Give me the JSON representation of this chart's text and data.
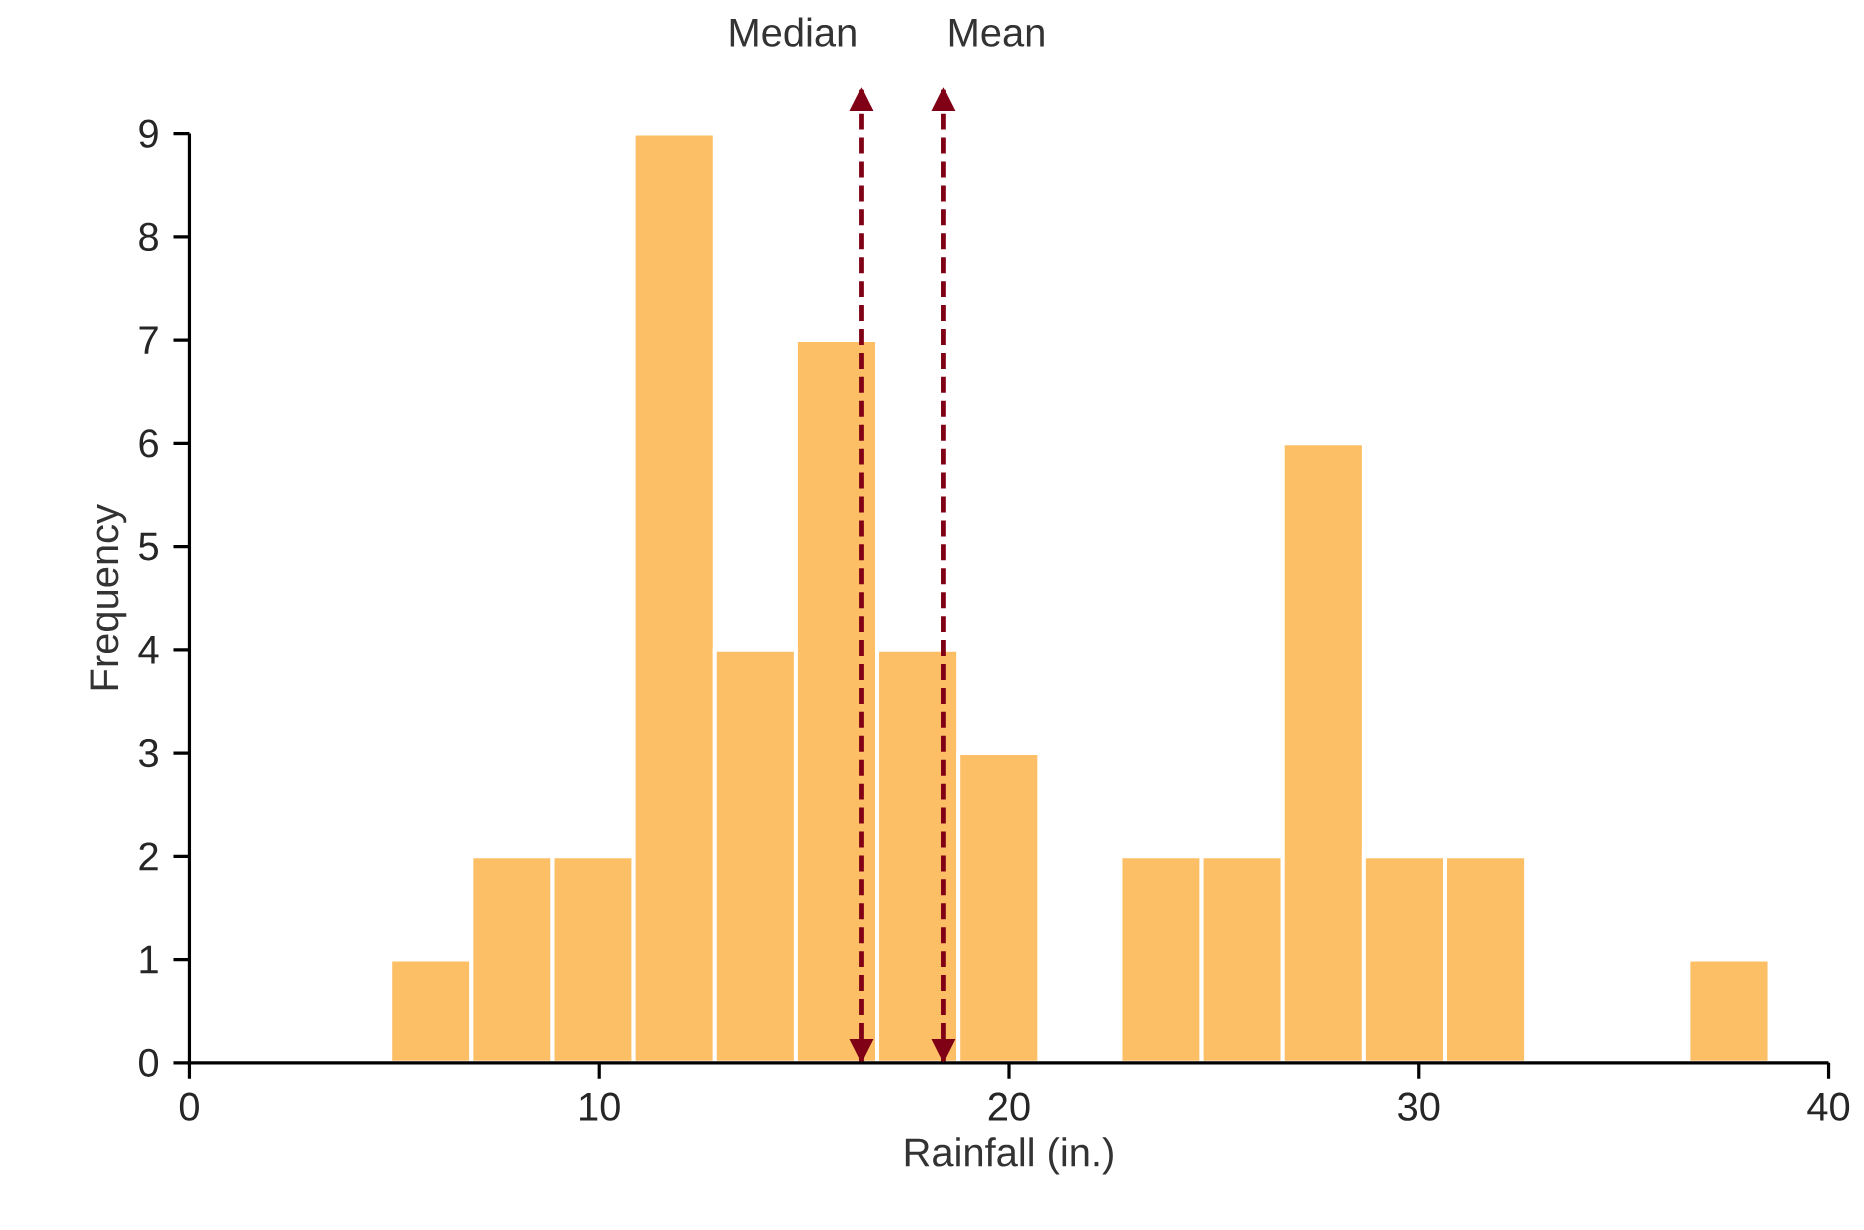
{
  "chart_data": {
    "type": "histogram",
    "xlabel": "Rainfall (in.)",
    "ylabel": "Frequency",
    "bins": [
      4.9,
      6.88,
      8.86,
      10.84,
      12.82,
      14.8,
      16.78,
      18.76,
      20.74,
      22.72,
      24.7,
      26.68,
      28.66,
      30.64,
      32.62,
      34.6,
      36.58,
      38.56
    ],
    "values": [
      1,
      2,
      2,
      9,
      4,
      7,
      4,
      3,
      0,
      2,
      2,
      6,
      2,
      2,
      0,
      0,
      1
    ],
    "color": "#fdbf66",
    "xlim": [
      0,
      40
    ],
    "xticks": [
      0,
      10,
      20,
      30,
      40
    ],
    "ylim": [
      0,
      9
    ],
    "yticks": [
      0,
      1,
      2,
      3,
      4,
      5,
      6,
      7,
      8,
      9
    ],
    "ref_lines": [
      {
        "axis": "x",
        "value": 16.4,
        "label": "Median",
        "color": "#800015",
        "line_style": "dashed"
      },
      {
        "axis": "x",
        "value": 18.4,
        "label": "Mean",
        "color": "#800015",
        "line_style": "dashed"
      }
    ]
  }
}
